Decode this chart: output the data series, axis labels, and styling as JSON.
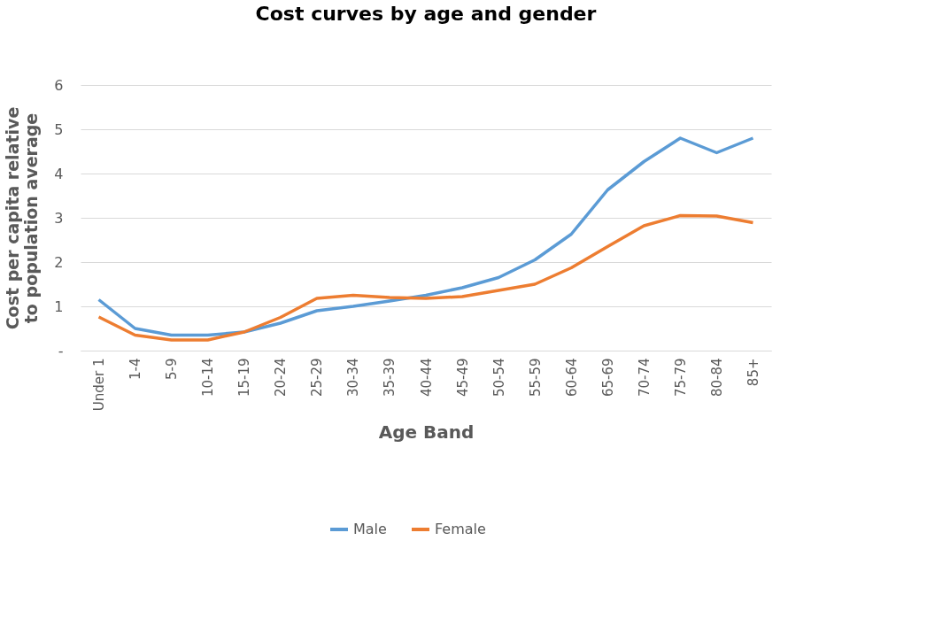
{
  "chart_data": {
    "type": "line",
    "title": "Cost curves by age and gender",
    "xlabel": "Age Band",
    "ylabel": "Cost per capita relative to population average",
    "categories": [
      "Under 1",
      "1-4",
      "5-9",
      "10-14",
      "15-19",
      "20-24",
      "25-29",
      "30-34",
      "35-39",
      "40-44",
      "45-49",
      "50-54",
      "55-59",
      "60-64",
      "65-69",
      "70-74",
      "75-79",
      "80-84",
      "85+"
    ],
    "series": [
      {
        "name": "Male",
        "color": "#5b9bd5",
        "values": [
          1.15,
          0.5,
          0.35,
          0.35,
          0.42,
          0.62,
          0.9,
          1.0,
          1.12,
          1.25,
          1.42,
          1.65,
          2.05,
          2.63,
          3.63,
          4.27,
          4.8,
          4.47,
          4.8
        ]
      },
      {
        "name": "Female",
        "color": "#ed7d31",
        "values": [
          0.76,
          0.35,
          0.24,
          0.24,
          0.42,
          0.75,
          1.18,
          1.25,
          1.2,
          1.18,
          1.22,
          1.36,
          1.5,
          1.87,
          2.35,
          2.82,
          3.05,
          3.04,
          2.89
        ]
      }
    ],
    "ylim": [
      0,
      6
    ],
    "yticks": [
      {
        "value": 0,
        "label": "-"
      },
      1,
      2,
      3,
      4,
      5,
      6
    ],
    "grid": "y",
    "legend": "bottom",
    "marker": "none",
    "line_style": "solid"
  }
}
